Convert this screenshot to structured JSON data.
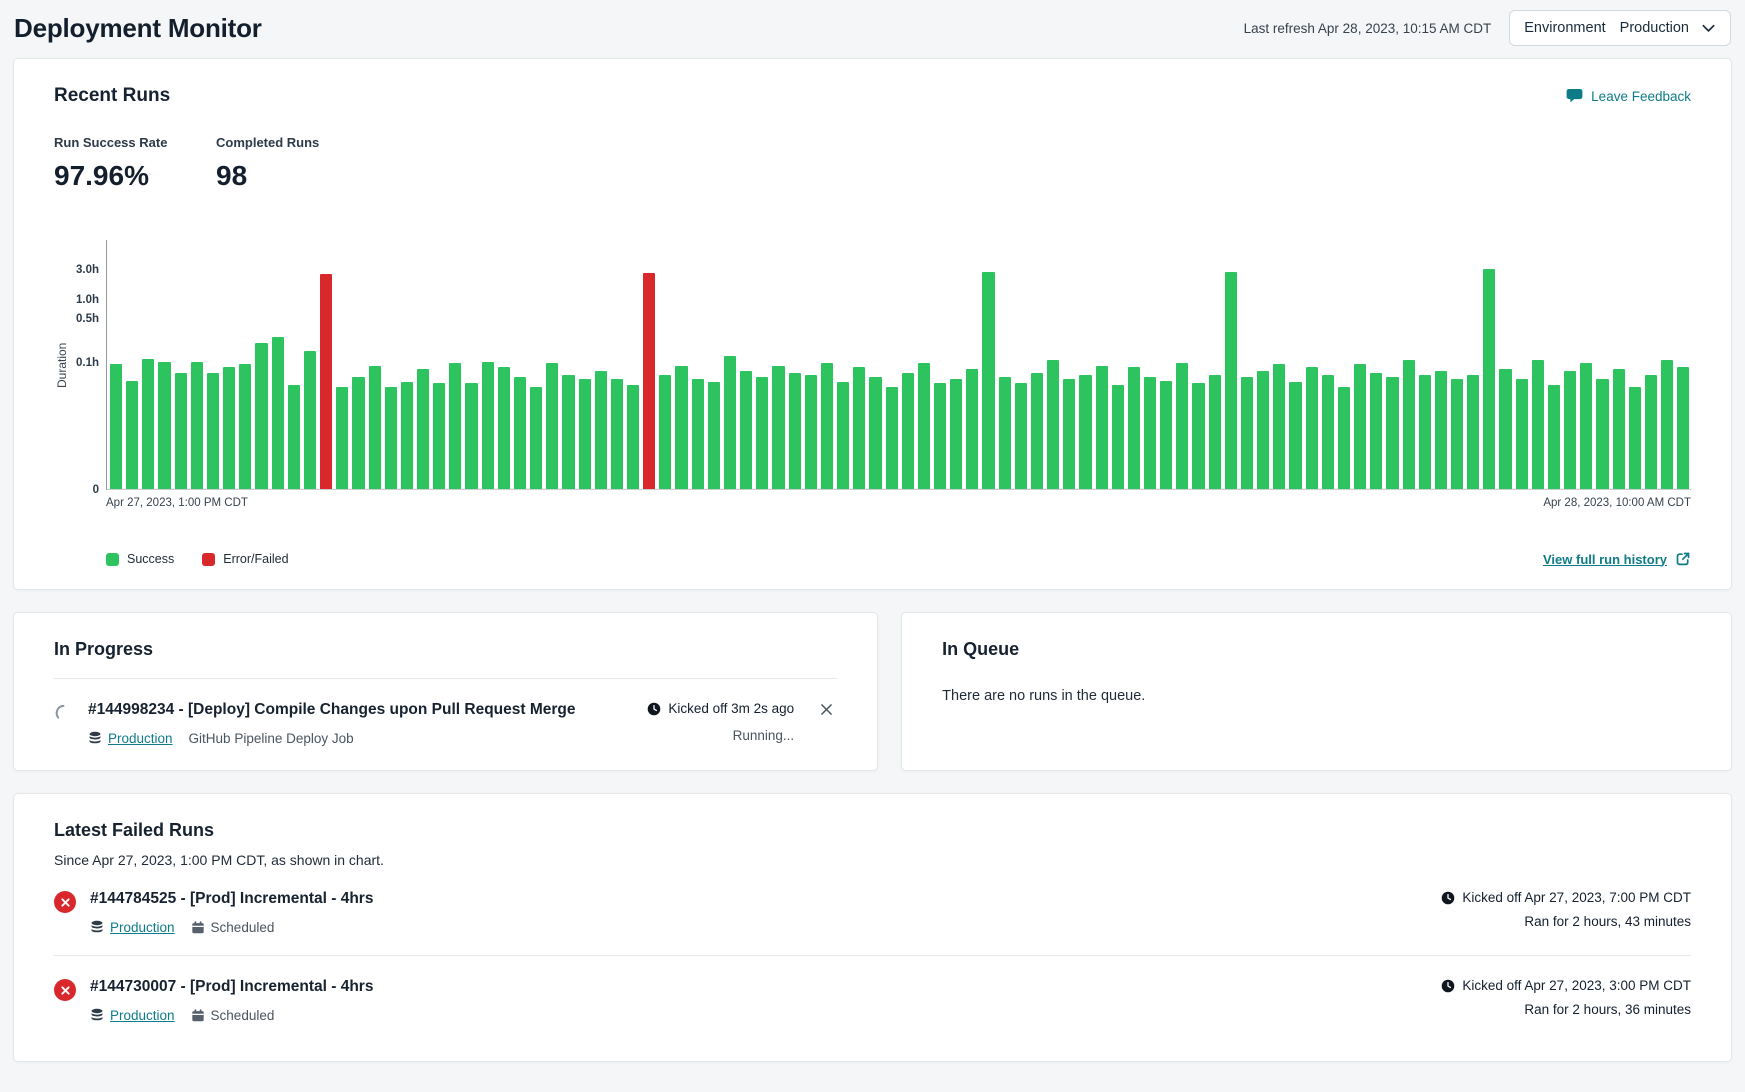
{
  "header": {
    "title": "Deployment Monitor",
    "last_refresh": "Last refresh Apr 28, 2023, 10:15 AM CDT",
    "environment_label": "Environment",
    "environment_value": "Production"
  },
  "recent_runs": {
    "title": "Recent Runs",
    "feedback_label": "Leave Feedback",
    "metrics": [
      {
        "label": "Run Success Rate",
        "value": "97.96%"
      },
      {
        "label": "Completed Runs",
        "value": "98"
      }
    ],
    "view_history_label": "View full run history"
  },
  "chart_data": {
    "type": "bar",
    "title": "Run duration per run, Apr 27 1:00 PM CDT - Apr 28 10:00 AM CDT",
    "ylabel": "Duration",
    "y_scale": "log-hours",
    "y_ticks": [
      {
        "label": "3.0h",
        "value": 3.0
      },
      {
        "label": "1.0h",
        "value": 1.0
      },
      {
        "label": "0.5h",
        "value": 0.5
      },
      {
        "label": "0.1h",
        "value": 0.1
      },
      {
        "label": "0",
        "value": 0
      }
    ],
    "x_axis_start": "Apr 27, 2023, 1:00 PM CDT",
    "x_axis_end": "Apr 28, 2023, 10:00 AM CDT",
    "legend": [
      {
        "label": "Success",
        "key": "success",
        "color": "#2dc35f"
      },
      {
        "label": "Error/Failed",
        "key": "failed",
        "color": "#d9282b"
      }
    ],
    "unit": "hours",
    "values": [
      0.095,
      0.052,
      0.115,
      0.105,
      0.07,
      0.102,
      0.07,
      0.085,
      0.095,
      0.21,
      0.26,
      0.045,
      0.155,
      2.6,
      0.042,
      0.06,
      0.09,
      0.042,
      0.05,
      0.08,
      0.048,
      0.1,
      0.048,
      0.105,
      0.085,
      0.06,
      0.042,
      0.1,
      0.065,
      0.055,
      0.075,
      0.055,
      0.045,
      2.72,
      0.065,
      0.09,
      0.055,
      0.05,
      0.13,
      0.075,
      0.06,
      0.09,
      0.07,
      0.065,
      0.1,
      0.05,
      0.085,
      0.06,
      0.042,
      0.07,
      0.1,
      0.048,
      0.055,
      0.08,
      2.8,
      0.06,
      0.048,
      0.07,
      0.11,
      0.055,
      0.065,
      0.09,
      0.045,
      0.085,
      0.06,
      0.052,
      0.1,
      0.048,
      0.065,
      2.8,
      0.06,
      0.075,
      0.095,
      0.05,
      0.085,
      0.065,
      0.042,
      0.095,
      0.07,
      0.06,
      0.11,
      0.065,
      0.075,
      0.055,
      0.065,
      3.1,
      0.08,
      0.055,
      0.11,
      0.045,
      0.075,
      0.1,
      0.055,
      0.08,
      0.042,
      0.065,
      0.11,
      0.085
    ],
    "failed_indices": [
      13,
      33
    ]
  },
  "in_progress": {
    "title": "In Progress",
    "run": {
      "title": "#144998234 - [Deploy] Compile Changes upon Pull Request Merge",
      "environment": "Production",
      "job": "GitHub Pipeline Deploy Job",
      "kicked_off": "Kicked off 3m 2s ago",
      "status": "Running..."
    }
  },
  "in_queue": {
    "title": "In Queue",
    "empty_message": "There are no runs in the queue."
  },
  "failed_runs": {
    "title": "Latest Failed Runs",
    "subtitle": "Since Apr 27, 2023, 1:00 PM CDT, as shown in chart.",
    "runs": [
      {
        "title": "#144784525 - [Prod] Incremental - 4hrs",
        "environment": "Production",
        "trigger": "Scheduled",
        "kicked_off": "Kicked off Apr 27, 2023, 7:00 PM CDT",
        "ran_for": "Ran for 2 hours, 43 minutes"
      },
      {
        "title": "#144730007 - [Prod] Incremental - 4hrs",
        "environment": "Production",
        "trigger": "Scheduled",
        "kicked_off": "Kicked off Apr 27, 2023, 3:00 PM CDT",
        "ran_for": "Ran for 2 hours, 36 minutes"
      }
    ]
  },
  "colors": {
    "accent_teal": "#0e7c88",
    "success_green": "#2dc35f",
    "failed_red": "#d9282b"
  }
}
